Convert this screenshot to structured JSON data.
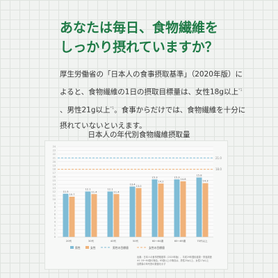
{
  "headline": {
    "line1": "あなたは毎日、食物繊維を",
    "line2": "しっかり摂れていますか？"
  },
  "body": {
    "line1": "厚生労働省の「日本人の食事摂取基準」（2020年版）に",
    "line2": "よると、食物繊維の1日の摂取目標量は、女性18g以上",
    "line2_note": "*1",
    "line3_a": "、男性21g以上",
    "line3_note": "*1",
    "line3_b": "。食事からだけでは、食物繊維を十分に",
    "line4": "摂れていないといえます。"
  },
  "chart_data": {
    "type": "bar",
    "title": "日本人の年代別食物繊維摂取量",
    "categories": [
      "20代",
      "30代",
      "40代",
      "50代",
      "60〜64歳",
      "65〜69歳",
      "70代以上"
    ],
    "series": [
      {
        "name": "男性",
        "values": [
          11.5,
          12.1,
          12.1,
          13.4,
          15.3,
          15.3,
          15.8
        ]
      },
      {
        "name": "女性",
        "values": [
          10.7,
          11.4,
          11.4,
          13.0,
          14.2,
          14.8,
          14.3
        ]
      }
    ],
    "targets": [
      {
        "name": "男性の目標値",
        "value": 21.0,
        "label": "21.0",
        "color": "#7fbcd6"
      },
      {
        "name": "女性の目標値",
        "value": 18.0,
        "label": "18.0",
        "color": "#f0b27a"
      }
    ],
    "ylim": [
      0,
      24
    ],
    "yticks": [
      0,
      1,
      2,
      3,
      4,
      5,
      6,
      7,
      8,
      9,
      10,
      11,
      12,
      13,
      14,
      15,
      16,
      17,
      18,
      19,
      20,
      21,
      22,
      23,
      24
    ],
    "grid": true,
    "legend_position": "bottom",
    "colors": {
      "male": "#7fbcd6",
      "female": "#f0b27a"
    },
    "source_lines": [
      "出典：日本人の食事摂取基準（2020年版）、平成29年国民健康・栄養調査",
      "※1 18〜64歳の場合。65歳以上の場合は、男性20g以上、女性17g以上",
      "目標量の年代別の数値を示す"
    ]
  }
}
